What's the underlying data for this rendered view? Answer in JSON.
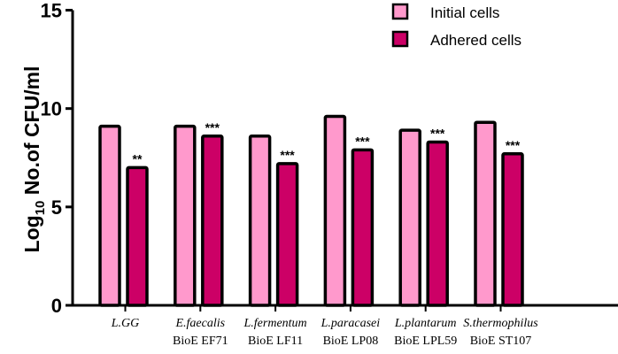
{
  "chart_data": {
    "type": "bar",
    "title": "",
    "ylabel_prefix": "Log",
    "ylabel_sub": "10",
    "ylabel_rest": " No.of CFU/ml",
    "xlabel": "",
    "ylim": [
      0,
      15
    ],
    "yticks": [
      0,
      5,
      10,
      15
    ],
    "grid": false,
    "legend_placement": "top-right",
    "categories": [
      {
        "species": "L.GG",
        "strain": ""
      },
      {
        "species": "E.faecalis",
        "strain": "BioE EF71"
      },
      {
        "species": "L.fermentum",
        "strain": "BioE LF11"
      },
      {
        "species": "L.paracasei",
        "strain": "BioE LP08"
      },
      {
        "species": "L.plantarum",
        "strain": "BioE LPL59"
      },
      {
        "species": "S.thermophilus",
        "strain": "BioE ST107"
      }
    ],
    "series": [
      {
        "name": "Initial cells",
        "color": "#ff99cc",
        "values": [
          9.1,
          9.1,
          8.6,
          9.6,
          8.9,
          9.3
        ]
      },
      {
        "name": "Adhered cells",
        "color": "#cc0066",
        "values": [
          7.0,
          8.6,
          7.2,
          7.9,
          8.3,
          7.7
        ]
      }
    ],
    "significance": [
      "**",
      "***",
      "***",
      "***",
      "***",
      "***"
    ]
  }
}
